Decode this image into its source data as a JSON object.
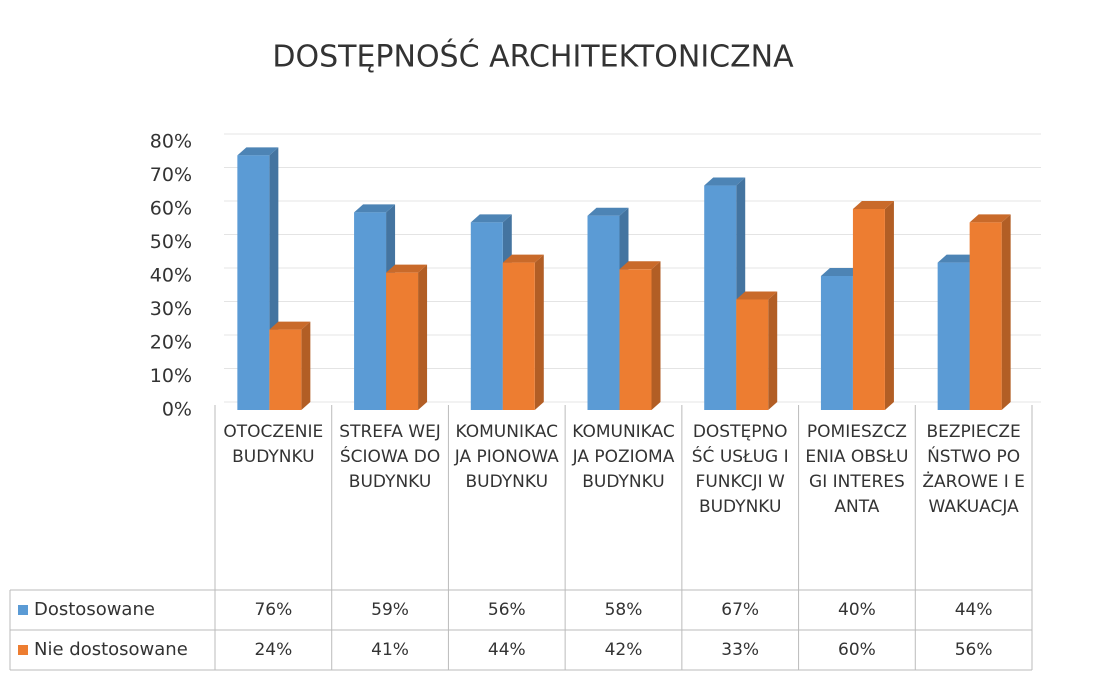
{
  "chart_data": {
    "type": "bar3d",
    "title": "DOSTĘPNOŚĆ ARCHITEKTONICZNA",
    "categories": [
      "OTOCZENIE BUDYNKU",
      "STREFA WEJŚCIOWA DO BUDYNKU",
      "KOMUNIKACJA PIONOWA BUDYNKU",
      "KOMUNIKACJA POZIOMA BUDYNKU",
      "DOSTĘPNOŚĆ USŁUG I FUNKCJI W BUDYNKU",
      "POMIESZCZENIA OBSŁUGI INTERESANTA",
      "BEZPIECZEŃSTWO POŻAROWE I EWAKUACJA"
    ],
    "series": [
      {
        "name": "Dostosowane",
        "color": "#5b9bd5",
        "values": [
          76,
          59,
          56,
          58,
          67,
          40,
          44
        ],
        "value_labels": [
          "76%",
          "59%",
          "56%",
          "58%",
          "67%",
          "40%",
          "44%"
        ]
      },
      {
        "name": "Nie dostosowane",
        "color": "#ed7d31",
        "values": [
          24,
          41,
          44,
          42,
          33,
          60,
          56
        ],
        "value_labels": [
          "24%",
          "41%",
          "44%",
          "42%",
          "33%",
          "60%",
          "56%"
        ]
      }
    ],
    "ylim": [
      0,
      80
    ],
    "yticks": [
      {
        "value": 0,
        "label": "0%"
      },
      {
        "value": 10,
        "label": "10%"
      },
      {
        "value": 20,
        "label": "20%"
      },
      {
        "value": 30,
        "label": "30%"
      },
      {
        "value": 40,
        "label": "40%"
      },
      {
        "value": 50,
        "label": "50%"
      },
      {
        "value": 60,
        "label": "60%"
      },
      {
        "value": 70,
        "label": "70%"
      },
      {
        "value": 80,
        "label": "80%"
      }
    ],
    "grid": true
  }
}
